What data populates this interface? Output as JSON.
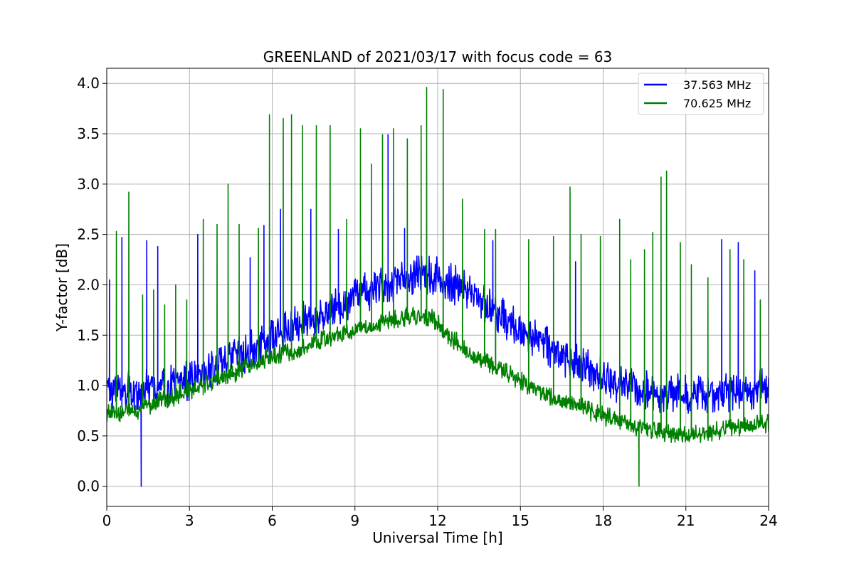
{
  "chart_data": {
    "type": "line",
    "title": "GREENLAND of 2021/03/17 with focus code = 63",
    "xlabel": "Universal Time [h]",
    "ylabel": "Y-factor [dB]",
    "xlim": [
      0,
      24
    ],
    "ylim": [
      -0.2,
      4.15
    ],
    "grid": true,
    "legend_position": "top-right",
    "x_ticks": [
      0,
      3,
      6,
      9,
      12,
      15,
      18,
      21,
      24
    ],
    "x_tick_labels": [
      "0",
      "3",
      "6",
      "9",
      "12",
      "15",
      "18",
      "21",
      "24"
    ],
    "y_ticks": [
      0.0,
      0.5,
      1.0,
      1.5,
      2.0,
      2.5,
      3.0,
      3.5,
      4.0
    ],
    "y_tick_labels": [
      "0.0",
      "0.5",
      "1.0",
      "1.5",
      "2.0",
      "2.5",
      "3.0",
      "3.5",
      "4.0"
    ],
    "series": [
      {
        "name": "37.563 MHz",
        "color": "#0000ff",
        "baseline": {
          "x": [
            0,
            1,
            2,
            3,
            4,
            5,
            6,
            7,
            8,
            9,
            10,
            11,
            11.8,
            12.2,
            13,
            14,
            15,
            16,
            17,
            18,
            19,
            20,
            21,
            22,
            23,
            24
          ],
          "y": [
            0.95,
            0.95,
            0.98,
            1.05,
            1.18,
            1.32,
            1.48,
            1.62,
            1.75,
            1.88,
            2.0,
            2.08,
            2.1,
            2.05,
            1.95,
            1.75,
            1.55,
            1.38,
            1.22,
            1.08,
            0.98,
            0.93,
            0.92,
            0.92,
            0.95,
            0.98
          ]
        },
        "noise_amplitude": 0.2,
        "spikes": [
          {
            "t": 0.1,
            "y": 2.05
          },
          {
            "t": 0.55,
            "y": 2.47
          },
          {
            "t": 1.45,
            "y": 2.44
          },
          {
            "t": 1.85,
            "y": 2.38
          },
          {
            "t": 3.3,
            "y": 2.5
          },
          {
            "t": 5.2,
            "y": 2.27
          },
          {
            "t": 5.7,
            "y": 2.59
          },
          {
            "t": 6.3,
            "y": 2.75
          },
          {
            "t": 7.4,
            "y": 2.75
          },
          {
            "t": 8.4,
            "y": 2.55
          },
          {
            "t": 10.2,
            "y": 3.49
          },
          {
            "t": 10.8,
            "y": 2.56
          },
          {
            "t": 14.0,
            "y": 2.44
          },
          {
            "t": 17.0,
            "y": 2.23
          },
          {
            "t": 22.3,
            "y": 2.45
          },
          {
            "t": 22.9,
            "y": 2.42
          },
          {
            "t": 23.5,
            "y": 2.14
          }
        ],
        "dip": {
          "t": 1.25,
          "y": 0.0
        }
      },
      {
        "name": "70.625 MHz",
        "color": "#008000",
        "baseline": {
          "x": [
            0,
            1,
            2,
            3,
            4,
            5,
            6,
            7,
            8,
            9,
            10,
            11,
            11.8,
            12.2,
            13,
            14,
            15,
            16,
            17,
            18,
            19,
            20,
            21,
            22,
            23,
            24
          ],
          "y": [
            0.72,
            0.75,
            0.85,
            0.95,
            1.06,
            1.17,
            1.28,
            1.38,
            1.47,
            1.55,
            1.62,
            1.7,
            1.68,
            1.55,
            1.35,
            1.2,
            1.05,
            0.9,
            0.8,
            0.7,
            0.6,
            0.55,
            0.5,
            0.55,
            0.6,
            0.62
          ]
        },
        "noise_amplitude": 0.1,
        "spikes": [
          {
            "t": 0.35,
            "y": 2.53
          },
          {
            "t": 0.8,
            "y": 2.92
          },
          {
            "t": 1.3,
            "y": 1.9
          },
          {
            "t": 1.7,
            "y": 1.95
          },
          {
            "t": 2.1,
            "y": 1.8
          },
          {
            "t": 2.5,
            "y": 2.0
          },
          {
            "t": 2.9,
            "y": 1.85
          },
          {
            "t": 3.5,
            "y": 2.65
          },
          {
            "t": 4.0,
            "y": 2.6
          },
          {
            "t": 4.4,
            "y": 3.0
          },
          {
            "t": 4.8,
            "y": 2.6
          },
          {
            "t": 5.5,
            "y": 2.56
          },
          {
            "t": 5.9,
            "y": 3.69
          },
          {
            "t": 6.4,
            "y": 3.65
          },
          {
            "t": 6.7,
            "y": 3.69
          },
          {
            "t": 7.1,
            "y": 3.58
          },
          {
            "t": 7.6,
            "y": 3.58
          },
          {
            "t": 8.1,
            "y": 3.58
          },
          {
            "t": 8.7,
            "y": 2.65
          },
          {
            "t": 9.2,
            "y": 3.55
          },
          {
            "t": 9.6,
            "y": 3.2
          },
          {
            "t": 10.0,
            "y": 3.49
          },
          {
            "t": 10.4,
            "y": 3.55
          },
          {
            "t": 10.9,
            "y": 3.45
          },
          {
            "t": 11.4,
            "y": 3.58
          },
          {
            "t": 11.6,
            "y": 3.96
          },
          {
            "t": 12.2,
            "y": 3.94
          },
          {
            "t": 12.9,
            "y": 2.85
          },
          {
            "t": 13.7,
            "y": 2.55
          },
          {
            "t": 14.1,
            "y": 2.55
          },
          {
            "t": 15.3,
            "y": 2.45
          },
          {
            "t": 16.2,
            "y": 2.48
          },
          {
            "t": 16.8,
            "y": 2.97
          },
          {
            "t": 17.2,
            "y": 2.5
          },
          {
            "t": 17.9,
            "y": 2.48
          },
          {
            "t": 18.6,
            "y": 2.65
          },
          {
            "t": 19.0,
            "y": 2.25
          },
          {
            "t": 19.5,
            "y": 2.35
          },
          {
            "t": 19.8,
            "y": 2.52
          },
          {
            "t": 20.1,
            "y": 3.07
          },
          {
            "t": 20.3,
            "y": 3.13
          },
          {
            "t": 20.8,
            "y": 2.42
          },
          {
            "t": 21.2,
            "y": 2.2
          },
          {
            "t": 21.8,
            "y": 2.07
          },
          {
            "t": 22.6,
            "y": 2.35
          },
          {
            "t": 23.1,
            "y": 2.25
          },
          {
            "t": 23.7,
            "y": 1.85
          }
        ],
        "dip": {
          "t": 19.3,
          "y": 0.0
        }
      }
    ]
  }
}
